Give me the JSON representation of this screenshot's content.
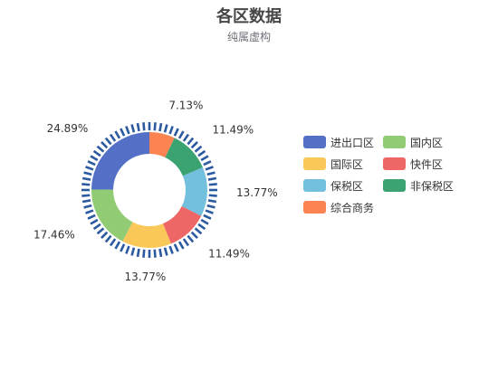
{
  "chart_data": {
    "type": "pie",
    "title": "各区数据",
    "subtitle": "纯属虚构",
    "categories": [
      "进出口区",
      "国内区",
      "国际区",
      "快件区",
      "保税区",
      "非保税区",
      "综合商务"
    ],
    "values": [
      24.89,
      17.46,
      13.77,
      11.49,
      13.77,
      11.49,
      7.13
    ],
    "labels": [
      "24.89%",
      "17.46%",
      "13.77%",
      "11.49%",
      "13.77%",
      "11.49%",
      "7.13%"
    ],
    "colors": [
      "#5470c6",
      "#91cc75",
      "#fac858",
      "#ee6666",
      "#73c0de",
      "#3ba272",
      "#fc8452"
    ],
    "legend_position": "right",
    "decorative_ring_color": "#2c5aa0"
  }
}
